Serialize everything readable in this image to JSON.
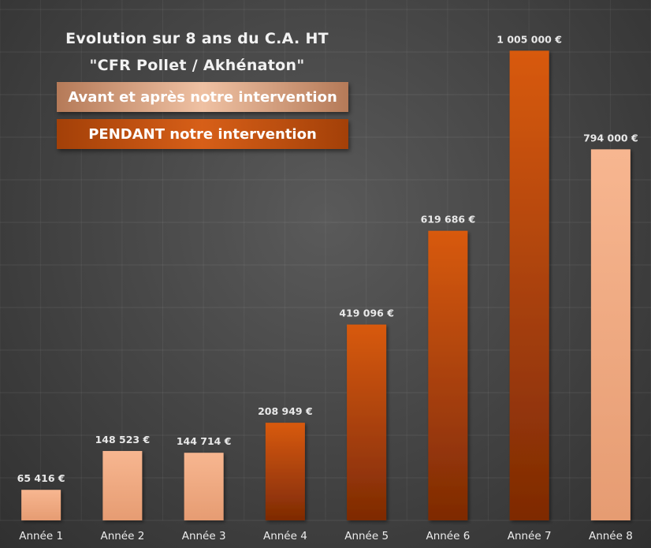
{
  "chart_data": {
    "type": "bar",
    "title": "Evolution sur 8 ans du C.A. HT",
    "subtitle": "\"CFR Pollet / Akhénaton\"",
    "categories": [
      "Année 1",
      "Année 2",
      "Année 3",
      "Année 4",
      "Année 5",
      "Année 6",
      "Année 7",
      "Année 8"
    ],
    "values": [
      65416,
      148523,
      144714,
      208949,
      419096,
      619686,
      1005000,
      794000
    ],
    "value_labels": [
      "65 416 €",
      "148 523 €",
      "144 714 €",
      "208 949 €",
      "419 096 €",
      "619 686 €",
      "1 005 000 €",
      "794 000 €"
    ],
    "bar_groups": [
      "before_after",
      "before_after",
      "before_after",
      "during",
      "during",
      "during",
      "during",
      "before_after"
    ],
    "legend": [
      {
        "key": "before_after",
        "label": "Avant et après notre intervention",
        "color": "#f2a880"
      },
      {
        "key": "during",
        "label": "PENDANT notre intervention",
        "color": "#c84e0a"
      }
    ],
    "legend_placement": "top-left",
    "ylim": [
      0,
      1100000
    ],
    "grid": true,
    "xlabel": "",
    "ylabel": ""
  },
  "colors": {
    "before_after_top": "#f7b690",
    "before_after_bottom": "#e9a37a",
    "during_top": "#d85a0e",
    "during_bottom": "#7e2a05",
    "label_text": "#e8e8e8",
    "axis_text": "#ececec"
  }
}
